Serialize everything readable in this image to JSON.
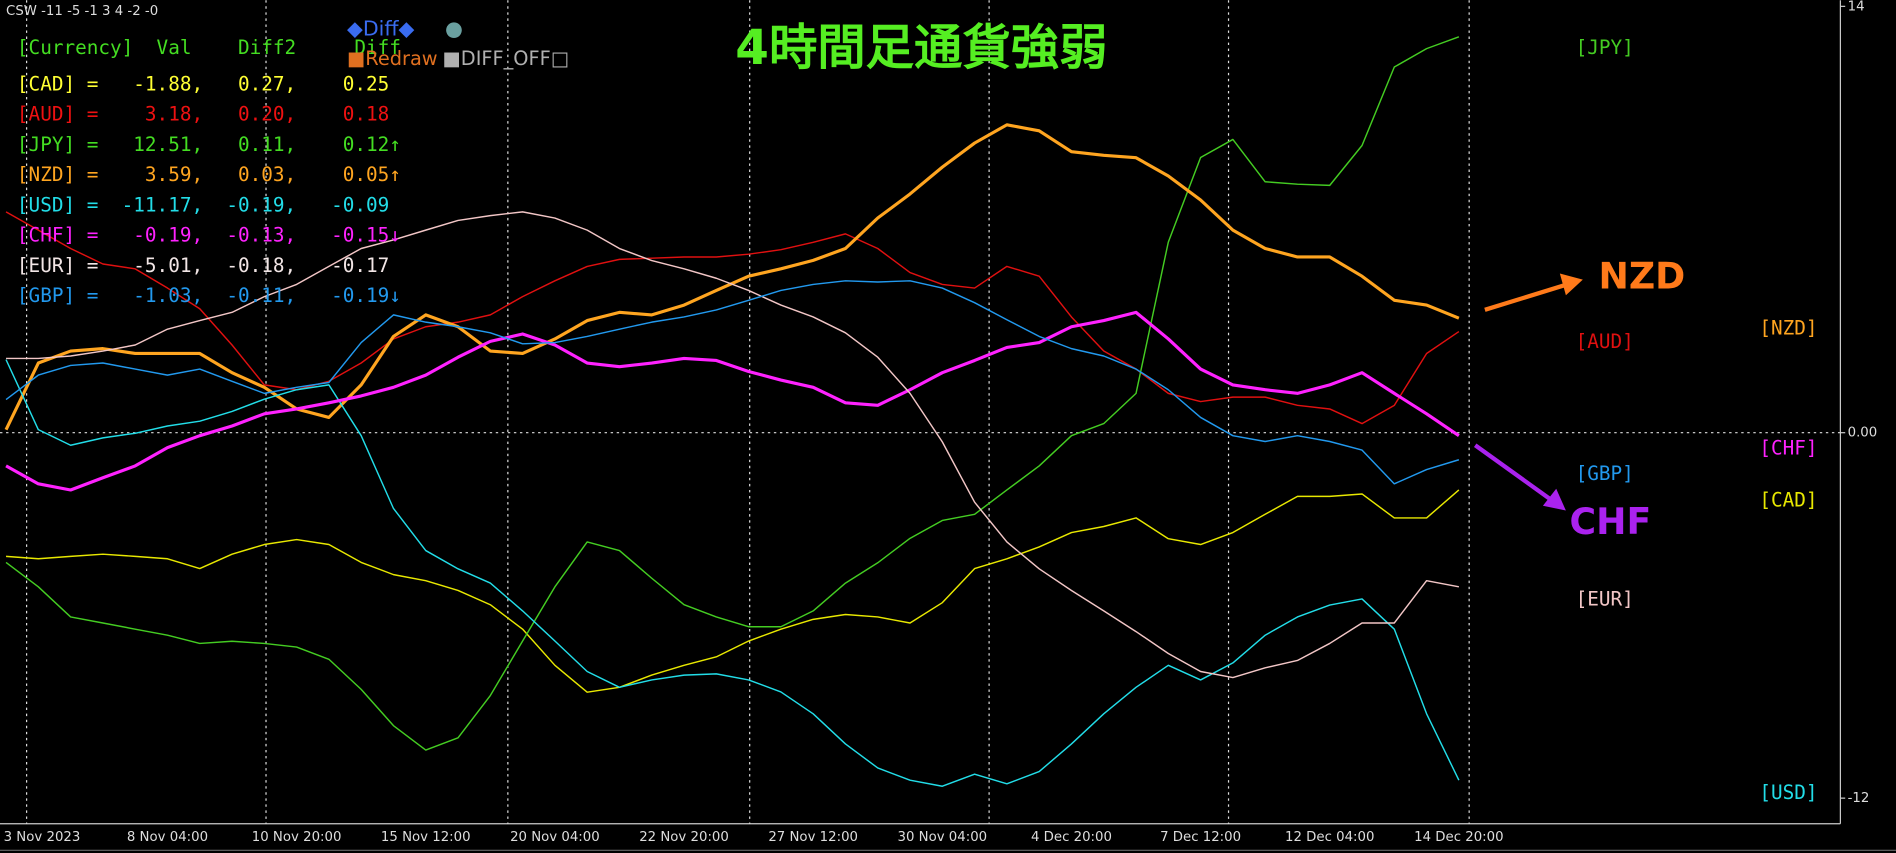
{
  "chart_data": {
    "type": "line",
    "header": "CSW -11 -5 -1 3 4 -2 -0",
    "title": "4時間足通貨強弱",
    "categories": [
      "3 Nov 2023",
      null,
      null,
      null,
      null,
      "8 Nov 04:00",
      null,
      null,
      null,
      "10 Nov 20:00",
      null,
      null,
      null,
      "15 Nov 12:00",
      null,
      null,
      null,
      "20 Nov 04:00",
      null,
      null,
      null,
      "22 Nov 20:00",
      null,
      null,
      null,
      "27 Nov 12:00",
      null,
      null,
      null,
      "30 Nov 04:00",
      null,
      null,
      null,
      "4 Dec 20:00",
      null,
      null,
      null,
      "7 Dec 12:00",
      null,
      null,
      null,
      "12 Dec 04:00",
      null,
      null,
      null,
      "14 Dec 20:00"
    ],
    "series": [
      {
        "name": "[CAD]",
        "color": "#e8e800",
        "width": 1.2,
        "values": [
          -4.06,
          -4.14,
          -4.06,
          -3.99,
          -4.06,
          -4.14,
          -4.46,
          -3.99,
          -3.67,
          -3.51,
          -3.67,
          -4.26,
          -4.66,
          -4.86,
          -5.18,
          -5.65,
          -6.45,
          -7.64,
          -8.52,
          -8.36,
          -7.96,
          -7.64,
          -7.36,
          -6.84,
          -6.45,
          -6.13,
          -5.97,
          -6.05,
          -6.25,
          -5.58,
          -4.46,
          -4.14,
          -3.75,
          -3.28,
          -3.08,
          -2.8,
          -3.48,
          -3.67,
          -3.28,
          -2.68,
          -2.09,
          -2.09,
          -2.01,
          -2.8,
          -2.8,
          -1.88
        ]
      },
      {
        "name": "[AUD]",
        "color": "#e01010",
        "width": 1.2,
        "values": [
          7.25,
          6.65,
          6.05,
          5.54,
          5.38,
          4.75,
          4.07,
          2.88,
          1.57,
          1.41,
          1.69,
          2.29,
          3.08,
          3.48,
          3.63,
          3.87,
          4.47,
          4.99,
          5.46,
          5.69,
          5.73,
          5.77,
          5.77,
          5.86,
          6.01,
          6.25,
          6.53,
          6.05,
          5.26,
          4.87,
          4.75,
          5.46,
          5.14,
          3.8,
          2.68,
          2.09,
          1.29,
          1.02,
          1.17,
          1.17,
          0.9,
          0.78,
          0.3,
          0.9,
          2.6,
          3.32
        ]
      },
      {
        "name": "[JPY]",
        "color": "#44cc22",
        "width": 1.2,
        "values": [
          -4.26,
          -5.06,
          -6.05,
          -6.25,
          -6.45,
          -6.65,
          -6.92,
          -6.85,
          -6.92,
          -7.04,
          -7.44,
          -8.43,
          -9.62,
          -10.42,
          -10.02,
          -8.63,
          -6.84,
          -5.06,
          -3.59,
          -3.87,
          -4.78,
          -5.65,
          -6.05,
          -6.37,
          -6.37,
          -5.85,
          -4.94,
          -4.27,
          -3.47,
          -2.88,
          -2.68,
          -1.88,
          -1.09,
          -0.1,
          0.3,
          1.29,
          6.26,
          9.04,
          9.63,
          8.24,
          8.16,
          8.12,
          9.43,
          12.01,
          12.61,
          13.0
        ]
      },
      {
        "name": "[NZD]",
        "color": "#ffa520",
        "width": 2.6,
        "values": [
          0.1,
          2.29,
          2.68,
          2.76,
          2.6,
          2.6,
          2.6,
          1.97,
          1.49,
          0.78,
          0.5,
          1.57,
          3.16,
          3.87,
          3.48,
          2.68,
          2.6,
          3.08,
          3.68,
          3.95,
          3.87,
          4.19,
          4.67,
          5.14,
          5.38,
          5.66,
          6.05,
          7.05,
          7.84,
          8.72,
          9.51,
          10.11,
          9.91,
          9.23,
          9.11,
          9.03,
          8.43,
          7.64,
          6.65,
          6.05,
          5.77,
          5.77,
          5.14,
          4.35,
          4.19,
          3.76
        ]
      },
      {
        "name": "[USD]",
        "color": "#22dde8",
        "width": 1.2,
        "values": [
          2.4,
          0.1,
          -0.41,
          -0.17,
          -0.02,
          0.22,
          0.38,
          0.7,
          1.1,
          1.41,
          1.57,
          -0.1,
          -2.49,
          -3.87,
          -4.47,
          -4.94,
          -5.85,
          -6.84,
          -7.84,
          -8.36,
          -8.12,
          -7.96,
          -7.92,
          -8.12,
          -8.51,
          -9.23,
          -10.22,
          -11.01,
          -11.41,
          -11.61,
          -11.21,
          -11.53,
          -11.13,
          -10.22,
          -9.23,
          -8.36,
          -7.64,
          -8.12,
          -7.56,
          -6.65,
          -6.05,
          -5.66,
          -5.46,
          -6.45,
          -9.23,
          -11.41
        ]
      },
      {
        "name": "[CHF]",
        "color": "#ff22ff",
        "width": 2.6,
        "values": [
          -1.09,
          -1.68,
          -1.88,
          -1.48,
          -1.09,
          -0.49,
          -0.1,
          0.22,
          0.62,
          0.78,
          0.98,
          1.21,
          1.49,
          1.89,
          2.48,
          3.0,
          3.24,
          2.88,
          2.29,
          2.17,
          2.29,
          2.44,
          2.37,
          2.01,
          1.73,
          1.49,
          0.98,
          0.9,
          1.41,
          1.97,
          2.37,
          2.8,
          2.96,
          3.48,
          3.68,
          3.95,
          3.08,
          2.09,
          1.57,
          1.41,
          1.29,
          1.57,
          1.97,
          1.29,
          0.62,
          -0.1
        ]
      },
      {
        "name": "[EUR]",
        "color": "#f2c6c6",
        "width": 1.2,
        "values": [
          2.44,
          2.44,
          2.52,
          2.68,
          2.88,
          3.4,
          3.68,
          3.95,
          4.47,
          4.87,
          5.46,
          6.05,
          6.33,
          6.65,
          6.97,
          7.13,
          7.25,
          7.05,
          6.65,
          6.05,
          5.65,
          5.38,
          5.07,
          4.67,
          4.19,
          3.8,
          3.28,
          2.48,
          1.29,
          -0.3,
          -2.28,
          -3.59,
          -4.47,
          -5.18,
          -5.85,
          -6.53,
          -7.25,
          -7.84,
          -8.04,
          -7.72,
          -7.48,
          -6.92,
          -6.25,
          -6.25,
          -4.86,
          -5.06
        ]
      },
      {
        "name": "[GBP]",
        "color": "#2299ee",
        "width": 1.2,
        "values": [
          1.09,
          1.89,
          2.21,
          2.29,
          2.09,
          1.89,
          2.09,
          1.69,
          1.29,
          1.49,
          1.65,
          2.96,
          3.87,
          3.63,
          3.48,
          3.28,
          2.92,
          2.96,
          3.16,
          3.4,
          3.63,
          3.8,
          4.03,
          4.35,
          4.67,
          4.87,
          4.99,
          4.95,
          4.99,
          4.75,
          4.27,
          3.71,
          3.16,
          2.76,
          2.52,
          2.09,
          1.41,
          0.5,
          -0.1,
          -0.29,
          -0.1,
          -0.29,
          -0.57,
          -1.68,
          -1.21,
          -0.89
        ]
      }
    ],
    "ylim": [
      -12.8,
      14.2
    ],
    "yticks": [
      14,
      {
        "value": 0,
        "label": "0.00"
      },
      -12
    ],
    "zero_line": true,
    "annotations": [
      {
        "text": "NZD",
        "color": "#ff7a1a"
      },
      {
        "text": "CHF",
        "color": "#aa22ee"
      }
    ]
  },
  "panel": {
    "header": "[Currency]  Val    Diff2     Diff",
    "header_color": "#44dd22",
    "rows": [
      {
        "text": "[CAD] =   -1.88,   0.27,    0.25",
        "color": "#ffff33"
      },
      {
        "text": "[AUD] =    3.18,   0.20,    0.18",
        "color": "#ee1111"
      },
      {
        "text": "[JPY] =   12.51,   0.11,    0.12↑",
        "color": "#44dd22"
      },
      {
        "text": "[NZD] =    3.59,   0.03,    0.05↑",
        "color": "#ffa520"
      },
      {
        "text": "[USD] =  -11.17,  -0.19,   -0.09",
        "color": "#22dde8"
      },
      {
        "text": "[CHF] =   -0.19,  -0.13,   -0.15↓",
        "color": "#ff22ff"
      },
      {
        "text": "[EUR] =   -5.01,  -0.18,   -0.17",
        "color": "#f2e6e6"
      },
      {
        "text": "[GBP] =   -1.03,  -0.11,   -0.19↓",
        "color": "#2299ee"
      }
    ]
  },
  "buttons": [
    {
      "label": "◆Diff◆",
      "color": "#3a6cf0"
    },
    {
      "label": "●",
      "color": "#6aa0a0"
    },
    {
      "label": "■Redraw",
      "color": "#e07020"
    },
    {
      "label": "■DIFF_OFF□",
      "color": "#b0b0b0"
    }
  ]
}
